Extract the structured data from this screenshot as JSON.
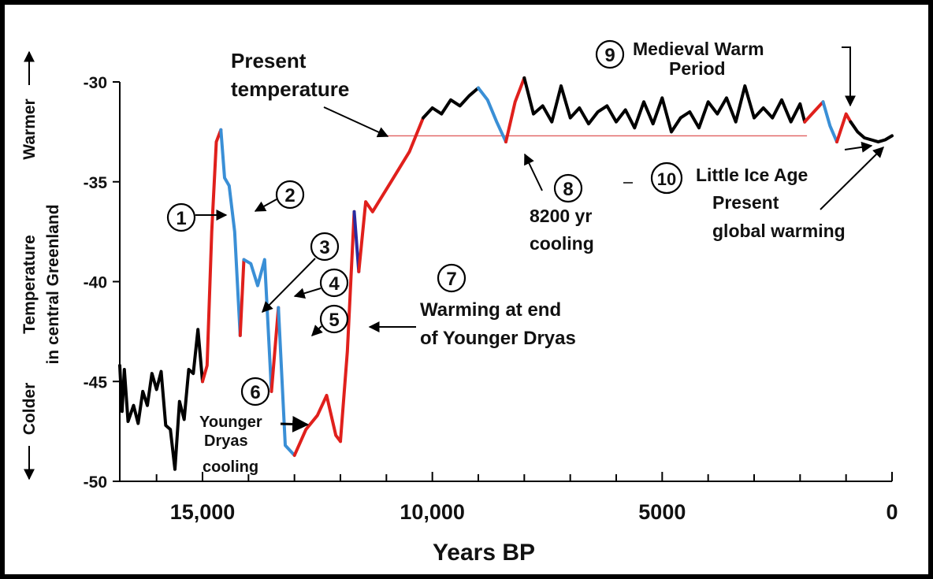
{
  "chart_data": {
    "type": "line",
    "xlabel": "Years BP",
    "ylabel_lines": [
      "Temperature",
      "in central Greenland"
    ],
    "side_labels": {
      "warmer": "Warmer",
      "colder": "Colder"
    },
    "xlim": [
      16800,
      0
    ],
    "ylim": [
      -50,
      -30
    ],
    "xticks": [
      15000,
      10000,
      5000,
      0
    ],
    "xtick_labels": [
      "15,000",
      "10,000",
      "5000",
      "0"
    ],
    "yticks": [
      -30,
      -35,
      -40,
      -45,
      -50
    ],
    "ytick_labels": [
      "-30",
      "-35",
      "-40",
      "-45",
      "-50"
    ],
    "present_temperature": -32.7,
    "colors": {
      "black": "#000000",
      "red": "#e0201c",
      "blue": "#3a8fd6",
      "darkblue": "#2a2aa0",
      "refline": "#e06060"
    },
    "series": [
      {
        "color": "black",
        "points": [
          [
            16800,
            -44.2
          ],
          [
            16750,
            -46.5
          ],
          [
            16700,
            -44.4
          ],
          [
            16620,
            -47.0
          ],
          [
            16500,
            -46.2
          ],
          [
            16400,
            -47.1
          ],
          [
            16300,
            -45.5
          ],
          [
            16200,
            -46.2
          ],
          [
            16100,
            -44.6
          ],
          [
            16000,
            -45.4
          ],
          [
            15900,
            -44.5
          ],
          [
            15800,
            -47.2
          ],
          [
            15700,
            -47.4
          ],
          [
            15600,
            -49.4
          ],
          [
            15500,
            -46.0
          ],
          [
            15400,
            -46.9
          ],
          [
            15300,
            -44.4
          ],
          [
            15200,
            -44.6
          ],
          [
            15100,
            -42.4
          ],
          [
            15000,
            -45.0
          ]
        ]
      },
      {
        "color": "red",
        "points": [
          [
            15000,
            -45.0
          ],
          [
            14900,
            -44.2
          ],
          [
            14800,
            -37.5
          ],
          [
            14700,
            -33.0
          ],
          [
            14600,
            -32.4
          ]
        ]
      },
      {
        "color": "blue",
        "points": [
          [
            14600,
            -32.4
          ],
          [
            14520,
            -34.8
          ],
          [
            14420,
            -35.2
          ],
          [
            14300,
            -37.5
          ],
          [
            14180,
            -42.7
          ]
        ]
      },
      {
        "color": "red",
        "points": [
          [
            14180,
            -42.7
          ],
          [
            14100,
            -38.9
          ]
        ]
      },
      {
        "color": "blue",
        "points": [
          [
            14100,
            -38.9
          ],
          [
            13950,
            -39.1
          ],
          [
            13800,
            -40.2
          ],
          [
            13650,
            -38.9
          ],
          [
            13500,
            -45.5
          ]
        ]
      },
      {
        "color": "red",
        "points": [
          [
            13500,
            -45.5
          ],
          [
            13350,
            -41.3
          ]
        ]
      },
      {
        "color": "blue",
        "points": [
          [
            13350,
            -41.3
          ],
          [
            13200,
            -48.2
          ],
          [
            13000,
            -48.7
          ]
        ]
      },
      {
        "color": "red",
        "points": [
          [
            13000,
            -48.7
          ],
          [
            12750,
            -47.4
          ],
          [
            12500,
            -46.7
          ],
          [
            12300,
            -45.7
          ],
          [
            12100,
            -47.7
          ],
          [
            12000,
            -48.0
          ]
        ]
      },
      {
        "color": "red",
        "points": [
          [
            12000,
            -48.0
          ],
          [
            11850,
            -43.5
          ],
          [
            11700,
            -36.5
          ]
        ]
      },
      {
        "color": "darkblue",
        "points": [
          [
            11700,
            -36.5
          ],
          [
            11600,
            -39.5
          ]
        ]
      },
      {
        "color": "red",
        "points": [
          [
            11600,
            -39.5
          ],
          [
            11450,
            -36.0
          ],
          [
            11300,
            -36.5
          ],
          [
            10900,
            -35.0
          ],
          [
            10500,
            -33.5
          ],
          [
            10200,
            -31.8
          ]
        ]
      },
      {
        "color": "black",
        "points": [
          [
            10200,
            -31.8
          ],
          [
            10000,
            -31.3
          ],
          [
            9800,
            -31.6
          ],
          [
            9600,
            -30.9
          ],
          [
            9400,
            -31.2
          ],
          [
            9200,
            -30.7
          ],
          [
            9000,
            -30.3
          ]
        ]
      },
      {
        "color": "blue",
        "points": [
          [
            9000,
            -30.3
          ],
          [
            8800,
            -30.9
          ],
          [
            8600,
            -32.0
          ],
          [
            8400,
            -33.0
          ]
        ]
      },
      {
        "color": "red",
        "points": [
          [
            8400,
            -33.0
          ],
          [
            8200,
            -31.0
          ],
          [
            8000,
            -29.8
          ]
        ]
      },
      {
        "color": "black",
        "points": [
          [
            8000,
            -29.8
          ],
          [
            7800,
            -31.6
          ],
          [
            7600,
            -31.2
          ],
          [
            7400,
            -32.0
          ],
          [
            7200,
            -30.2
          ],
          [
            7000,
            -31.8
          ],
          [
            6800,
            -31.3
          ],
          [
            6600,
            -32.1
          ],
          [
            6400,
            -31.5
          ],
          [
            6200,
            -31.2
          ],
          [
            6000,
            -32.0
          ],
          [
            5800,
            -31.4
          ],
          [
            5600,
            -32.3
          ],
          [
            5400,
            -31.0
          ],
          [
            5200,
            -32.1
          ],
          [
            5000,
            -30.8
          ],
          [
            4800,
            -32.5
          ],
          [
            4600,
            -31.8
          ],
          [
            4400,
            -31.5
          ],
          [
            4200,
            -32.3
          ],
          [
            4000,
            -31.0
          ],
          [
            3800,
            -31.6
          ],
          [
            3600,
            -30.8
          ],
          [
            3400,
            -32.0
          ],
          [
            3200,
            -30.2
          ],
          [
            3000,
            -31.8
          ],
          [
            2800,
            -31.3
          ],
          [
            2600,
            -31.8
          ],
          [
            2400,
            -30.9
          ],
          [
            2200,
            -32.0
          ],
          [
            2000,
            -31.1
          ],
          [
            1900,
            -32.0
          ]
        ]
      },
      {
        "color": "red",
        "points": [
          [
            1900,
            -32.0
          ],
          [
            1700,
            -31.5
          ],
          [
            1500,
            -31.0
          ]
        ]
      },
      {
        "color": "blue",
        "points": [
          [
            1500,
            -31.0
          ],
          [
            1350,
            -32.2
          ],
          [
            1200,
            -33.0
          ]
        ]
      },
      {
        "color": "red",
        "points": [
          [
            1200,
            -33.0
          ],
          [
            1000,
            -31.6
          ],
          [
            900,
            -32.0
          ]
        ]
      },
      {
        "color": "black",
        "points": [
          [
            900,
            -32.0
          ],
          [
            750,
            -32.5
          ],
          [
            600,
            -32.8
          ],
          [
            450,
            -32.9
          ],
          [
            300,
            -33.0
          ],
          [
            150,
            -32.9
          ],
          [
            0,
            -32.7
          ]
        ]
      }
    ],
    "annotations": [
      {
        "num": "1"
      },
      {
        "num": "2"
      },
      {
        "num": "3"
      },
      {
        "num": "4"
      },
      {
        "num": "5"
      },
      {
        "num": "6",
        "lines": [
          "Younger",
          "Dryas",
          "cooling"
        ]
      },
      {
        "num": "7",
        "lines": [
          "Warming at end",
          "of Younger Dryas"
        ]
      },
      {
        "num": "8",
        "lines": [
          "8200 yr",
          "cooling"
        ]
      },
      {
        "num": "9",
        "lines": [
          "Medieval Warm",
          "Period"
        ]
      },
      {
        "num": "10",
        "lines": [
          "Little Ice Age"
        ]
      },
      {
        "num": "",
        "lines": [
          "Present",
          "global warming"
        ]
      },
      {
        "num": "",
        "lines": [
          "Present",
          "temperature"
        ]
      }
    ]
  }
}
